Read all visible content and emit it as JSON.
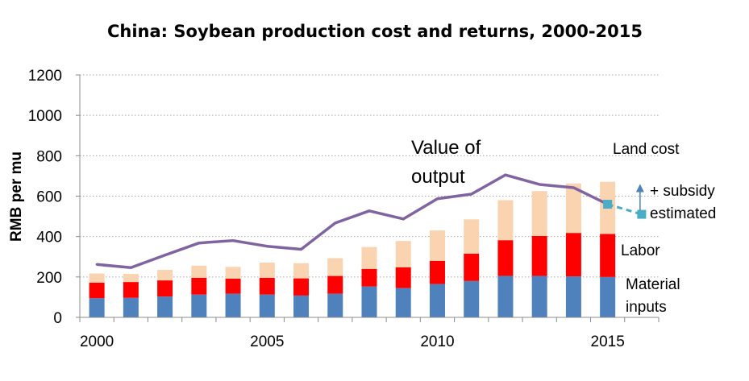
{
  "chart_data": {
    "type": "bar",
    "title": "China: Soybean production cost and returns, 2000-2015",
    "ylabel": "RMB per mu",
    "xlabel": "",
    "x": [
      2000,
      2001,
      2002,
      2003,
      2004,
      2005,
      2006,
      2007,
      2008,
      2009,
      2010,
      2011,
      2012,
      2013,
      2014,
      2015
    ],
    "x_tick_labels": [
      "2000",
      "2005",
      "2010",
      "2015"
    ],
    "y_tick_labels": [
      "0",
      "200",
      "400",
      "600",
      "800",
      "1000",
      "1200"
    ],
    "ylim": [
      0,
      1200
    ],
    "grid": "horizontal dotted",
    "stacked": true,
    "series": [
      {
        "name": "Material inputs",
        "color": "#4F81BD",
        "values": [
          95,
          97,
          103,
          113,
          117,
          113,
          108,
          117,
          153,
          145,
          165,
          180,
          205,
          205,
          203,
          200
        ]
      },
      {
        "name": "Labor",
        "color": "#FF0000",
        "values": [
          77,
          78,
          80,
          83,
          75,
          83,
          85,
          88,
          87,
          103,
          115,
          135,
          177,
          198,
          215,
          213
        ]
      },
      {
        "name": "Land cost",
        "color": "#FAD3B1",
        "values": [
          45,
          40,
          52,
          60,
          58,
          75,
          75,
          88,
          108,
          130,
          150,
          170,
          198,
          222,
          245,
          258
        ]
      }
    ],
    "line_series": {
      "name": "Value of output",
      "color": "#8064A2",
      "values": [
        262,
        246,
        308,
        368,
        380,
        352,
        337,
        467,
        527,
        487,
        587,
        610,
        705,
        658,
        642,
        560
      ]
    },
    "estimate_series": {
      "color": "#4BACC6",
      "x": [
        2015,
        2016
      ],
      "values": [
        560,
        510
      ]
    },
    "subsidy_arrow": {
      "color": "#4F81BD",
      "x": 2016,
      "from": 530,
      "to": 660
    },
    "annotations": {
      "value_of_output_line1": "Value of",
      "value_of_output_line2": "output",
      "land_cost": "Land cost",
      "subsidy": "+ subsidy",
      "estimated": "estimated",
      "labor": "Labor",
      "material_line1": "Material",
      "material_line2": "inputs"
    }
  }
}
